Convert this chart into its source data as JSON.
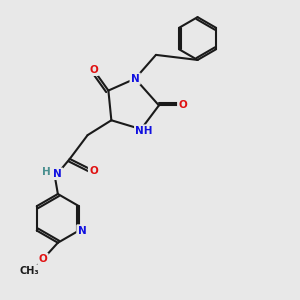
{
  "background_color": "#e8e8e8",
  "bond_color": "#1a1a1a",
  "atom_colors": {
    "N": "#1010e0",
    "O": "#e01010",
    "H": "#4a9090"
  },
  "lw": 1.5,
  "doffset": 0.09
}
